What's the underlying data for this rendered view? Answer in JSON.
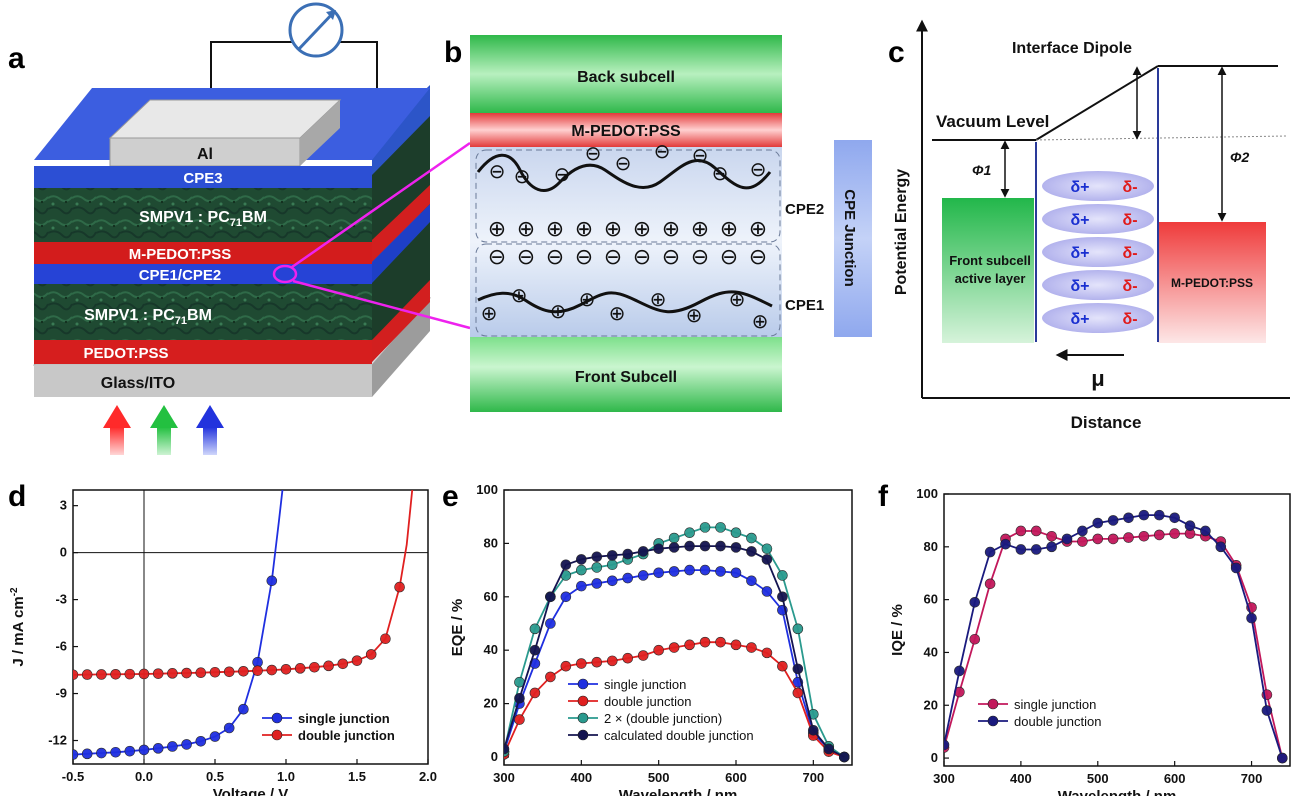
{
  "panel_letters": {
    "a": "a",
    "b": "b",
    "c": "c",
    "d": "d",
    "e": "e",
    "f": "f"
  },
  "panel_a": {
    "top_electrode": "Al",
    "cpe3": "CPE3",
    "active_top": "SMPV1 : PC",
    "active_sub": "71",
    "active_tail": "BM",
    "mpedot": "M-PEDOT:PSS",
    "cpe12": "CPE1/CPE2",
    "pedot": "PEDOT:PSS",
    "substrate": "Glass/ITO"
  },
  "panel_b": {
    "back": "Back subcell",
    "mpedot": "M-PEDOT:PSS",
    "front": "Front Subcell",
    "cpe2": "CPE2",
    "cpe1": "CPE1",
    "junction": "CPE Junction",
    "minus": "⊖",
    "plus": "⊕"
  },
  "panel_c": {
    "title": "Interface Dipole",
    "vacuum": "Vacuum Level",
    "phi1": "Φ1",
    "phi2": "Φ2",
    "front_layer_1": "Front subcell",
    "front_layer_2": "active layer",
    "mpedot": "M-PEDOT:PSS",
    "dplus": "δ+",
    "dminus": "δ-",
    "mu": "μ",
    "ylabel": "Potential Energy",
    "xlabel": "Distance"
  },
  "chart_data": [
    {
      "type": "line",
      "panel": "d",
      "xlabel": "Voltage / V",
      "ylabel": "J / mA cm",
      "ylabel_sup": "-2",
      "xlim": [
        -0.5,
        2.0
      ],
      "ylim": [
        -13.5,
        4
      ],
      "xticks": [
        -0.5,
        0.0,
        0.5,
        1.0,
        1.5,
        2.0
      ],
      "xtick_labels": [
        "-0.5",
        "0.0",
        "0.5",
        "1.0",
        "1.5",
        "2.0"
      ],
      "yticks": [
        -12,
        -9,
        -6,
        -3,
        0,
        3
      ],
      "ytick_labels": [
        "-12",
        "-9",
        "-6",
        "-3",
        "0",
        "3"
      ],
      "legend_position": "bottom-right",
      "series": [
        {
          "name": "single junction",
          "color": "#1f2fe0",
          "x": [
            -0.5,
            -0.4,
            -0.3,
            -0.2,
            -0.1,
            0.0,
            0.1,
            0.2,
            0.3,
            0.4,
            0.5,
            0.6,
            0.7,
            0.8,
            0.9,
            0.95,
            1.0
          ],
          "y": [
            -12.9,
            -12.85,
            -12.8,
            -12.75,
            -12.68,
            -12.6,
            -12.5,
            -12.38,
            -12.25,
            -12.05,
            -11.75,
            -11.2,
            -10.0,
            -7.0,
            -1.8,
            2.0,
            6.0
          ],
          "markers_x": [
            -0.5,
            -0.4,
            -0.3,
            -0.2,
            -0.1,
            0.0,
            0.1,
            0.2,
            0.3,
            0.4,
            0.5,
            0.6,
            0.7,
            0.8,
            0.9
          ]
        },
        {
          "name": "double junction",
          "color": "#e02020",
          "x": [
            -0.5,
            -0.4,
            -0.3,
            -0.2,
            -0.1,
            0.0,
            0.1,
            0.2,
            0.3,
            0.4,
            0.5,
            0.6,
            0.7,
            0.8,
            0.9,
            1.0,
            1.1,
            1.2,
            1.3,
            1.4,
            1.5,
            1.6,
            1.7,
            1.8,
            1.85,
            1.9
          ],
          "y": [
            -7.8,
            -7.79,
            -7.78,
            -7.77,
            -7.76,
            -7.75,
            -7.73,
            -7.71,
            -7.69,
            -7.67,
            -7.64,
            -7.61,
            -7.58,
            -7.54,
            -7.5,
            -7.45,
            -7.39,
            -7.32,
            -7.23,
            -7.1,
            -6.9,
            -6.5,
            -5.5,
            -2.2,
            0.5,
            5.0
          ],
          "markers_x": [
            -0.5,
            -0.4,
            -0.3,
            -0.2,
            -0.1,
            0.0,
            0.1,
            0.2,
            0.3,
            0.4,
            0.5,
            0.6,
            0.7,
            0.8,
            0.9,
            1.0,
            1.1,
            1.2,
            1.3,
            1.4,
            1.5,
            1.6,
            1.7,
            1.8
          ]
        }
      ]
    },
    {
      "type": "line",
      "panel": "e",
      "xlabel": "Wavelength / nm",
      "ylabel": "EQE / %",
      "xlim": [
        300,
        750
      ],
      "ylim": [
        -3,
        100
      ],
      "xticks": [
        300,
        400,
        500,
        600,
        700
      ],
      "xtick_labels": [
        "300",
        "400",
        "500",
        "600",
        "700"
      ],
      "yticks": [
        0,
        20,
        40,
        60,
        80,
        100
      ],
      "ytick_labels": [
        "0",
        "20",
        "40",
        "60",
        "80",
        "100"
      ],
      "legend_position": "bottom-center",
      "series": [
        {
          "name": "single junction",
          "color": "#1f2fe0",
          "x": [
            300,
            320,
            340,
            360,
            380,
            400,
            420,
            440,
            460,
            480,
            500,
            520,
            540,
            560,
            580,
            600,
            620,
            640,
            660,
            680,
            700,
            720,
            740
          ],
          "y": [
            2,
            20,
            35,
            50,
            60,
            64,
            65,
            66,
            67,
            68,
            69,
            69.5,
            70,
            70,
            69.5,
            69,
            66,
            62,
            55,
            28,
            9,
            3,
            0
          ]
        },
        {
          "name": "double junction",
          "color": "#e02020",
          "x": [
            300,
            320,
            340,
            360,
            380,
            400,
            420,
            440,
            460,
            480,
            500,
            520,
            540,
            560,
            580,
            600,
            620,
            640,
            660,
            680,
            700,
            720,
            740
          ],
          "y": [
            1,
            14,
            24,
            30,
            34,
            35,
            35.5,
            36,
            37,
            38,
            40,
            41,
            42,
            43,
            43,
            42,
            41,
            39,
            34,
            24,
            8,
            2,
            0
          ]
        },
        {
          "name": "2 × (double junction)",
          "color": "#2a9a8e",
          "x": [
            300,
            320,
            340,
            360,
            380,
            400,
            420,
            440,
            460,
            480,
            500,
            520,
            540,
            560,
            580,
            600,
            620,
            640,
            660,
            680,
            700,
            720,
            740
          ],
          "y": [
            2,
            28,
            48,
            60,
            68,
            70,
            71,
            72,
            74,
            76,
            80,
            82,
            84,
            86,
            86,
            84,
            82,
            78,
            68,
            48,
            16,
            4,
            0
          ]
        },
        {
          "name": "calculated double junction",
          "color": "#141450",
          "x": [
            300,
            320,
            340,
            360,
            380,
            400,
            420,
            440,
            460,
            480,
            500,
            520,
            540,
            560,
            580,
            600,
            620,
            640,
            660,
            680,
            700,
            720,
            740
          ],
          "y": [
            3,
            22,
            40,
            60,
            72,
            74,
            75,
            75.5,
            76,
            77,
            78,
            78.5,
            79,
            79,
            79,
            78.5,
            77,
            74,
            60,
            33,
            10,
            3,
            0
          ]
        }
      ]
    },
    {
      "type": "line",
      "panel": "f",
      "xlabel": "Wavelength / nm",
      "ylabel": "IQE / %",
      "xlim": [
        300,
        750
      ],
      "ylim": [
        -3,
        100
      ],
      "xticks": [
        300,
        400,
        500,
        600,
        700
      ],
      "xtick_labels": [
        "300",
        "400",
        "500",
        "600",
        "700"
      ],
      "yticks": [
        0,
        20,
        40,
        60,
        80,
        100
      ],
      "ytick_labels": [
        "0",
        "20",
        "40",
        "60",
        "80",
        "100"
      ],
      "legend_position": "bottom-left",
      "series": [
        {
          "name": "single junction",
          "color": "#c2185b",
          "x": [
            300,
            320,
            340,
            360,
            380,
            400,
            420,
            440,
            460,
            480,
            500,
            520,
            540,
            560,
            580,
            600,
            620,
            640,
            660,
            680,
            700,
            720,
            740
          ],
          "y": [
            4,
            25,
            45,
            66,
            83,
            86,
            86,
            84,
            82,
            82,
            83,
            83,
            83.5,
            84,
            84.5,
            85,
            85,
            84,
            82,
            73,
            57,
            24,
            0
          ]
        },
        {
          "name": "double junction",
          "color": "#1a1a7e",
          "x": [
            300,
            320,
            340,
            360,
            380,
            400,
            420,
            440,
            460,
            480,
            500,
            520,
            540,
            560,
            580,
            600,
            620,
            640,
            660,
            680,
            700,
            720,
            740
          ],
          "y": [
            5,
            33,
            59,
            78,
            81,
            79,
            79,
            80,
            83,
            86,
            89,
            90,
            91,
            92,
            92,
            91,
            88,
            86,
            80,
            72,
            53,
            18,
            0
          ]
        }
      ]
    }
  ]
}
